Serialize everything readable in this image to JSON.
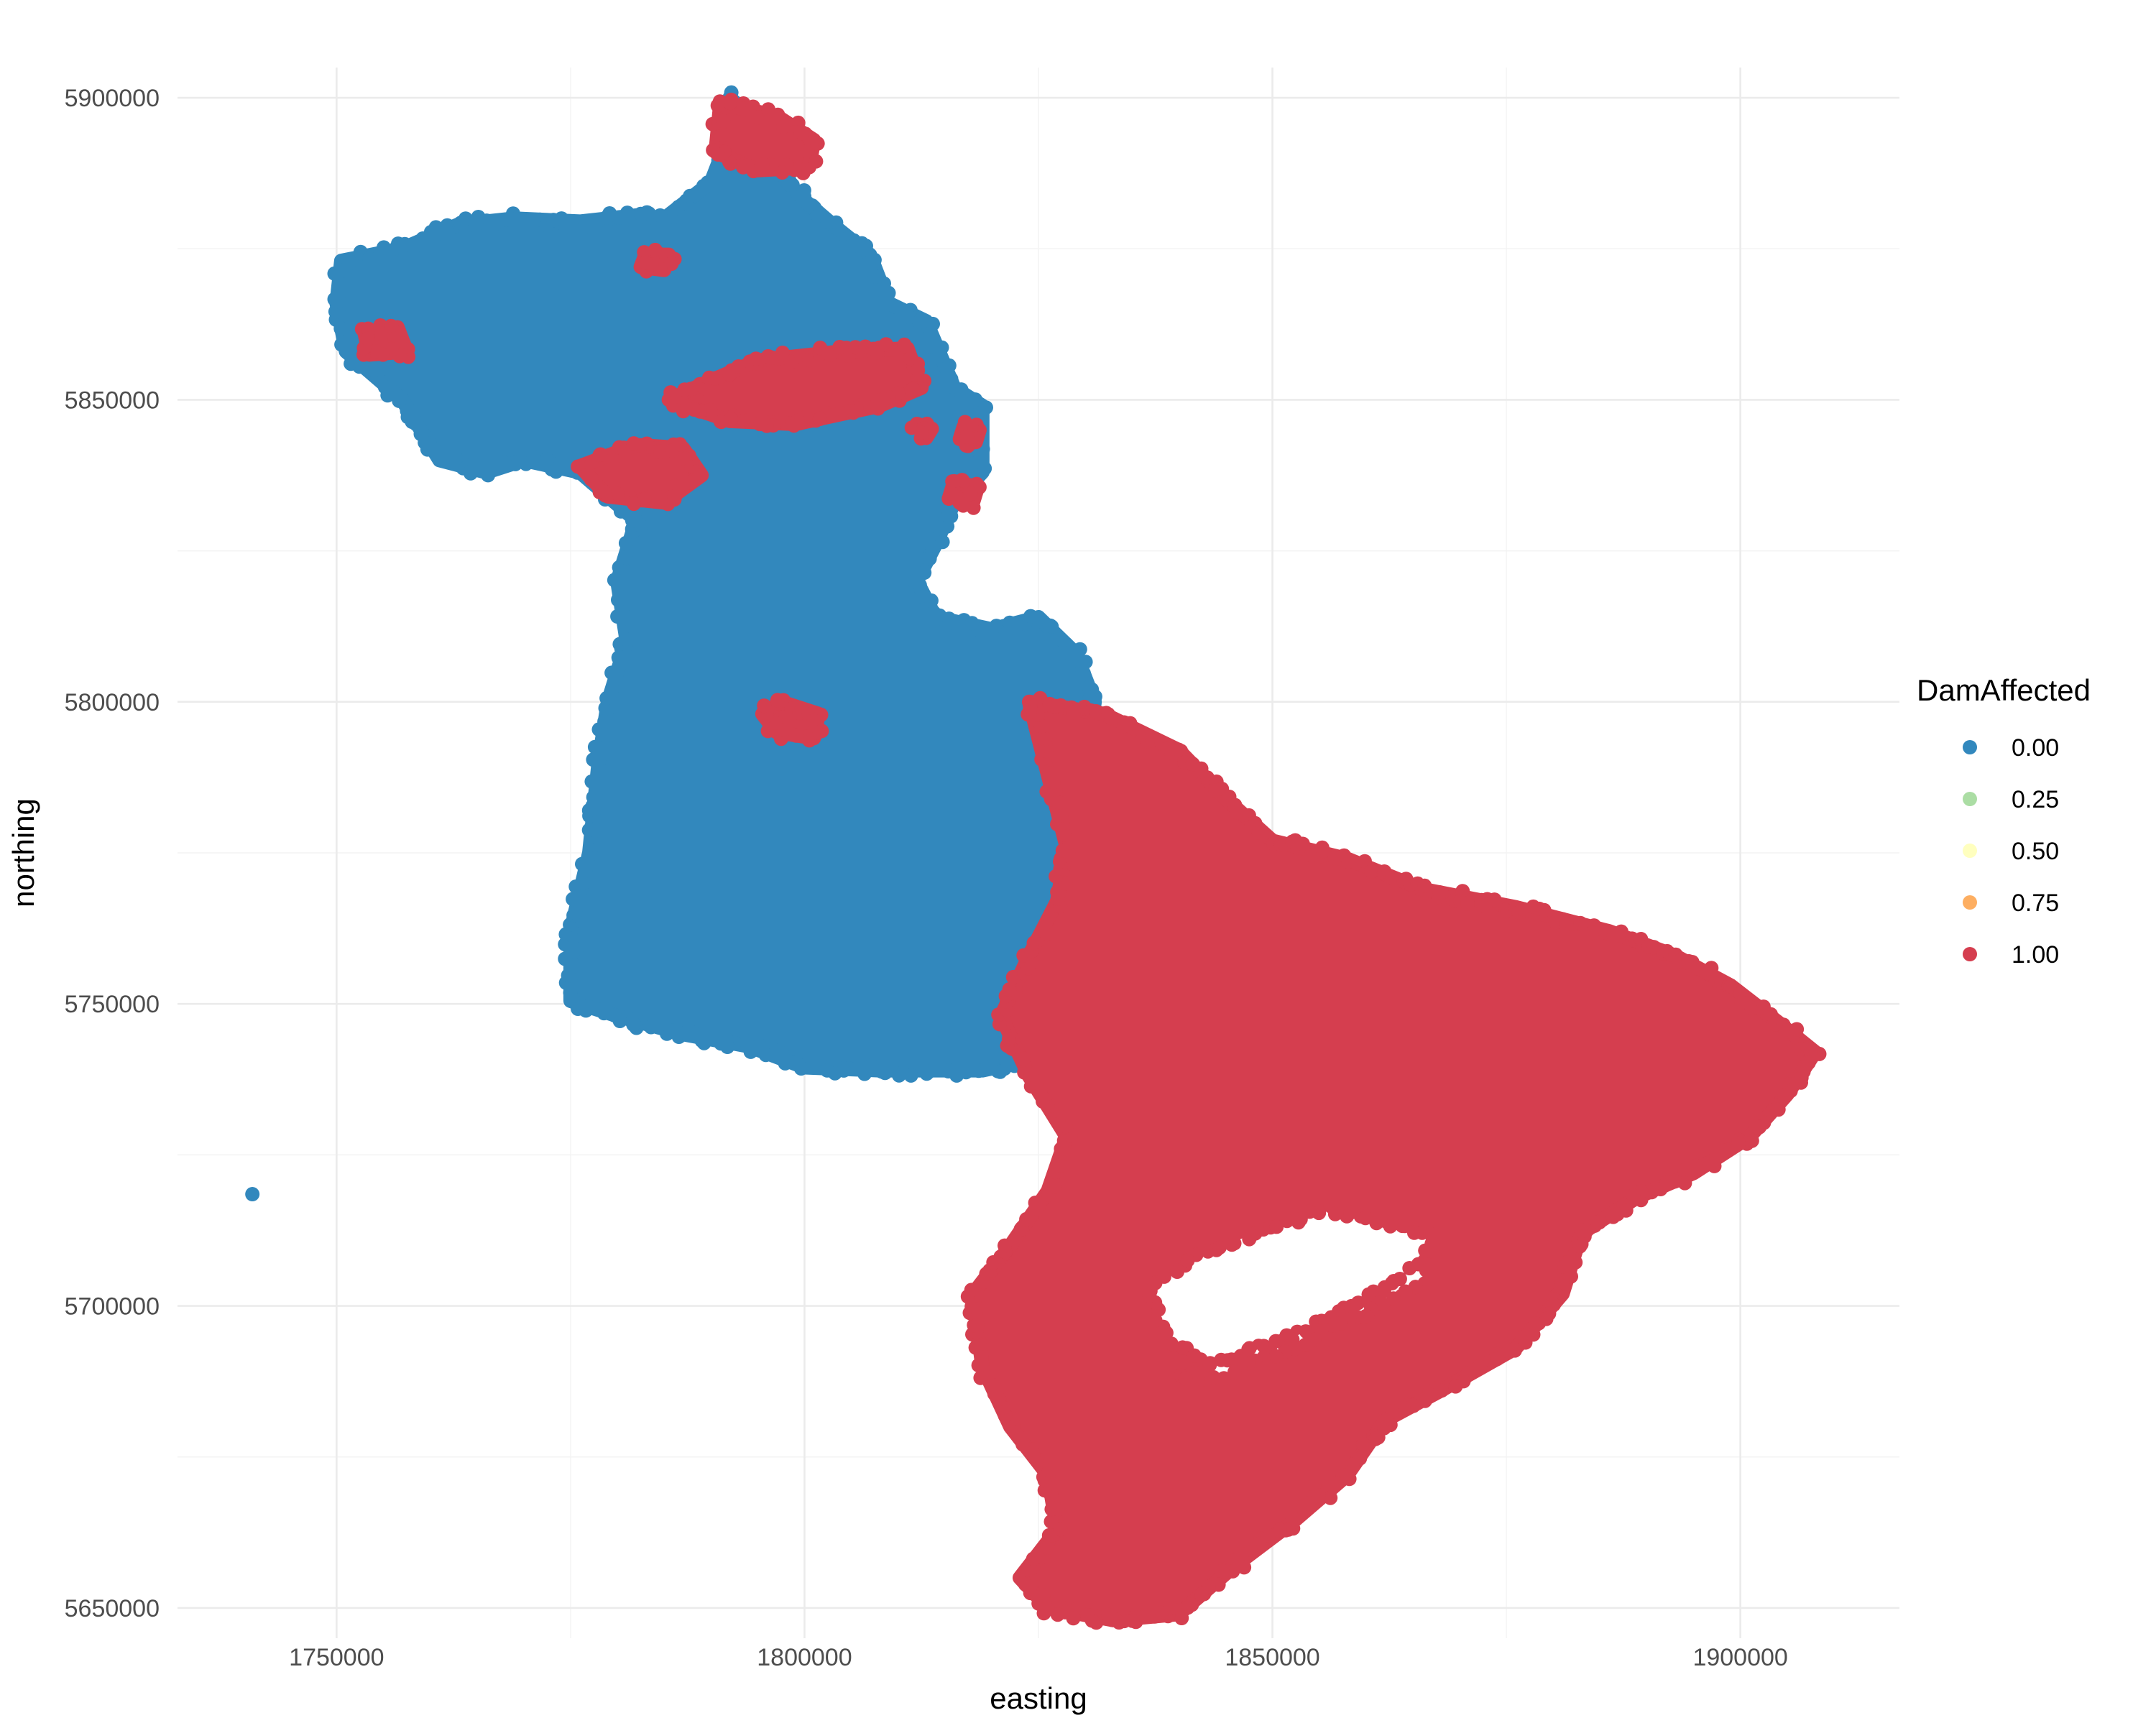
{
  "chart_data": {
    "type": "scatter",
    "title": "",
    "xlabel": "easting",
    "ylabel": "northing",
    "xlim": [
      1733000,
      1917000
    ],
    "ylim": [
      5645000,
      5905000
    ],
    "x_ticks": [
      1750000,
      1800000,
      1850000,
      1900000
    ],
    "y_ticks": [
      5650000,
      5700000,
      5750000,
      5800000,
      5850000,
      5900000
    ],
    "x_tick_labels": [
      "1750000",
      "1800000",
      "1850000",
      "1900000"
    ],
    "y_tick_labels": [
      "5650000",
      "5700000",
      "5750000",
      "5800000",
      "5850000",
      "5900000"
    ],
    "grid": true,
    "legend": {
      "title": "DamAffected",
      "placement": "right",
      "entries": [
        {
          "label": "0.00",
          "value": 0.0,
          "color": "#3288bd"
        },
        {
          "label": "0.25",
          "value": 0.25,
          "color": "#abdda4"
        },
        {
          "label": "0.50",
          "value": 0.5,
          "color": "#ffffbf"
        },
        {
          "label": "0.75",
          "value": 0.75,
          "color": "#fdae61"
        },
        {
          "label": "1.00",
          "value": 1.0,
          "color": "#d53e4f"
        }
      ]
    },
    "series": [
      {
        "value": 0.0,
        "color": "#3288bd",
        "regions": [
          [
            [
              1750500,
              5873000
            ],
            [
              1757000,
              5875000
            ],
            [
              1763000,
              5879000
            ],
            [
              1769000,
              5880000
            ],
            [
              1776000,
              5879500
            ],
            [
              1782000,
              5880500
            ],
            [
              1785000,
              5880000
            ],
            [
              1790000,
              5886000
            ],
            [
              1791500,
              5892000
            ],
            [
              1792000,
              5900000
            ],
            [
              1793500,
              5898000
            ],
            [
              1794000,
              5890000
            ],
            [
              1797000,
              5888000
            ],
            [
              1800000,
              5883000
            ],
            [
              1803000,
              5879000
            ],
            [
              1807000,
              5874000
            ],
            [
              1809000,
              5866000
            ],
            [
              1813000,
              5863000
            ],
            [
              1816000,
              5852000
            ],
            [
              1819000,
              5849000
            ],
            [
              1819000,
              5838000
            ],
            [
              1816000,
              5833000
            ],
            [
              1814000,
              5826000
            ],
            [
              1812000,
              5820000
            ],
            [
              1814000,
              5814000
            ],
            [
              1820000,
              5812000
            ],
            [
              1825000,
              5814000
            ],
            [
              1829000,
              5808000
            ],
            [
              1831000,
              5800000
            ],
            [
              1830000,
              5788000
            ],
            [
              1829000,
              5775000
            ],
            [
              1830000,
              5765000
            ],
            [
              1827000,
              5752000
            ],
            [
              1825000,
              5741000
            ],
            [
              1819000,
              5739000
            ],
            [
              1808000,
              5739000
            ],
            [
              1800000,
              5739500
            ],
            [
              1794000,
              5743000
            ],
            [
              1787000,
              5745000
            ],
            [
              1780000,
              5748000
            ],
            [
              1775000,
              5750500
            ],
            [
              1775000,
              5762000
            ],
            [
              1777000,
              5775000
            ],
            [
              1778000,
              5790000
            ],
            [
              1779000,
              5800000
            ],
            [
              1781000,
              5810000
            ],
            [
              1780000,
              5820000
            ],
            [
              1782000,
              5830000
            ],
            [
              1776000,
              5838000
            ],
            [
              1770000,
              5840000
            ],
            [
              1766000,
              5838000
            ],
            [
              1761000,
              5840000
            ],
            [
              1757000,
              5850000
            ],
            [
              1751000,
              5858000
            ],
            [
              1750000,
              5866000
            ]
          ]
        ],
        "points": [
          [
            1741000,
            5718500
          ]
        ]
      },
      {
        "value": 1.0,
        "color": "#d53e4f",
        "regions": [
          [
            [
              1824000,
              5800000
            ],
            [
              1832000,
              5798000
            ],
            [
              1840000,
              5792000
            ],
            [
              1845000,
              5784000
            ],
            [
              1850000,
              5777000
            ],
            [
              1858000,
              5774000
            ],
            [
              1866000,
              5769000
            ],
            [
              1876000,
              5766000
            ],
            [
              1886000,
              5762000
            ],
            [
              1893000,
              5758000
            ],
            [
              1899000,
              5753000
            ],
            [
              1904000,
              5747000
            ],
            [
              1908000,
              5742000
            ],
            [
              1905000,
              5735000
            ],
            [
              1901000,
              5728000
            ],
            [
              1895000,
              5722000
            ],
            [
              1889000,
              5718000
            ],
            [
              1883000,
              5712000
            ],
            [
              1881000,
              5702000
            ],
            [
              1876000,
              5693000
            ],
            [
              1868000,
              5686000
            ],
            [
              1862000,
              5681000
            ],
            [
              1858000,
              5672000
            ],
            [
              1852000,
              5664000
            ],
            [
              1846000,
              5657000
            ],
            [
              1840000,
              5649000
            ],
            [
              1833000,
              5648000
            ],
            [
              1826000,
              5650000
            ],
            [
              1823000,
              5655000
            ],
            [
              1827000,
              5663000
            ],
            [
              1826000,
              5672000
            ],
            [
              1822000,
              5680000
            ],
            [
              1819000,
              5690000
            ],
            [
              1818000,
              5702000
            ],
            [
              1822000,
              5710000
            ],
            [
              1826000,
              5719000
            ],
            [
              1828000,
              5728000
            ],
            [
              1824000,
              5738000
            ],
            [
              1821000,
              5748000
            ],
            [
              1824000,
              5758000
            ],
            [
              1827000,
              5767000
            ],
            [
              1828000,
              5776000
            ],
            [
              1826000,
              5788000
            ]
          ],
          [
            [
              1791000,
              5899000
            ],
            [
              1797000,
              5897000
            ],
            [
              1801000,
              5893000
            ],
            [
              1800500,
              5888500
            ],
            [
              1795000,
              5888000
            ],
            [
              1790500,
              5891000
            ]
          ],
          [
            [
              1804000,
              5858000
            ],
            [
              1811000,
              5858500
            ],
            [
              1812500,
              5852000
            ],
            [
              1808000,
              5849000
            ],
            [
              1799000,
              5846000
            ],
            [
              1792000,
              5846500
            ],
            [
              1785500,
              5850000
            ],
            [
              1789000,
              5852500
            ],
            [
              1795000,
              5856500
            ]
          ],
          [
            [
              1776000,
              5839000
            ],
            [
              1782000,
              5842500
            ],
            [
              1787000,
              5842000
            ],
            [
              1789000,
              5837500
            ],
            [
              1785000,
              5833000
            ],
            [
              1779000,
              5834000
            ]
          ],
          [
            [
              1797500,
              5800000
            ],
            [
              1801500,
              5798000
            ],
            [
              1801000,
              5794000
            ],
            [
              1797000,
              5795000
            ],
            [
              1795500,
              5798000
            ]
          ],
          [
            [
              1753000,
              5861000
            ],
            [
              1756500,
              5862000
            ],
            [
              1757500,
              5858000
            ],
            [
              1753500,
              5857500
            ]
          ],
          [
            [
              1783000,
              5874000
            ],
            [
              1785500,
              5874000
            ],
            [
              1785000,
              5871500
            ],
            [
              1782500,
              5872000
            ]
          ],
          [
            [
              1817000,
              5845500
            ],
            [
              1818700,
              5845000
            ],
            [
              1818300,
              5843000
            ],
            [
              1816600,
              5843500
            ]
          ],
          [
            [
              1816000,
              5836500
            ],
            [
              1818500,
              5835500
            ],
            [
              1818000,
              5833000
            ],
            [
              1815500,
              5834000
            ]
          ],
          [
            [
              1812000,
              5846000
            ],
            [
              1813600,
              5845200
            ],
            [
              1813000,
              5843700
            ]
          ]
        ],
        "holes": [
          [
            [
              1842000,
              5708000
            ],
            [
              1848000,
              5712000
            ],
            [
              1856000,
              5716000
            ],
            [
              1862000,
              5714000
            ],
            [
              1867000,
              5712000
            ],
            [
              1866000,
              5706000
            ],
            [
              1861000,
              5702000
            ],
            [
              1856000,
              5698000
            ],
            [
              1850000,
              5694000
            ],
            [
              1843000,
              5690000
            ],
            [
              1838000,
              5696000
            ],
            [
              1837000,
              5703000
            ]
          ],
          [
            [
              1840000,
              5688000
            ],
            [
              1847000,
              5692000
            ],
            [
              1856000,
              5697000
            ],
            [
              1861000,
              5702000
            ],
            [
              1867000,
              5708000
            ],
            [
              1866000,
              5704000
            ],
            [
              1859000,
              5698000
            ],
            [
              1851000,
              5692000
            ],
            [
              1844000,
              5688000
            ]
          ]
        ],
        "points": [
          [
            1856000,
            5694500
          ]
        ]
      }
    ]
  }
}
